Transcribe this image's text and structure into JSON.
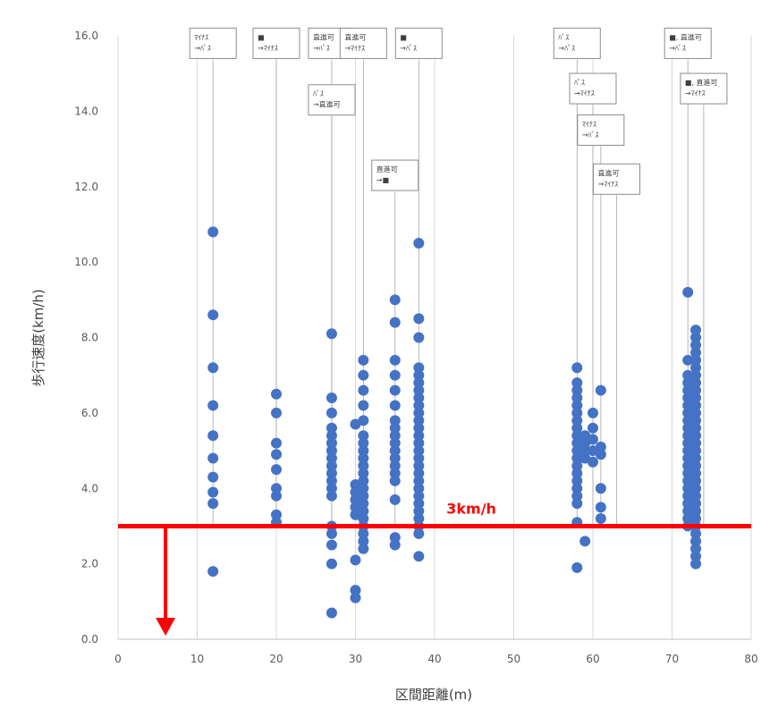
{
  "chart_data": {
    "type": "scatter",
    "title": "",
    "xlabel": "区間距離(m)",
    "ylabel": "歩行速度(km/h)",
    "xlim": [
      0,
      80
    ],
    "ylim": [
      0,
      16
    ],
    "x_ticks": [
      "0",
      "10",
      "20",
      "30",
      "40",
      "50",
      "60",
      "70",
      "80"
    ],
    "y_ticks": [
      "0.0",
      "2.0",
      "4.0",
      "6.0",
      "8.0",
      "10.0",
      "12.0",
      "14.0",
      "16.0"
    ],
    "grid": "vertical",
    "marker_color": "#4472c4",
    "threshold": {
      "value": 3,
      "label": "3km/h",
      "color": "#ff0000"
    },
    "series": [
      {
        "points": [
          [
            12,
            10.8
          ],
          [
            12,
            8.6
          ],
          [
            12,
            7.2
          ],
          [
            12,
            6.2
          ],
          [
            12,
            5.4
          ],
          [
            12,
            4.8
          ],
          [
            12,
            4.3
          ],
          [
            12,
            3.9
          ],
          [
            12,
            3.6
          ],
          [
            12,
            1.8
          ],
          [
            20,
            6.5
          ],
          [
            20,
            6.0
          ],
          [
            20,
            5.2
          ],
          [
            20,
            4.9
          ],
          [
            20,
            4.5
          ],
          [
            20,
            4.0
          ],
          [
            20,
            3.8
          ],
          [
            20,
            3.3
          ],
          [
            20,
            3.1
          ],
          [
            27,
            8.1
          ],
          [
            27,
            6.4
          ],
          [
            27,
            6.0
          ],
          [
            27,
            5.6
          ],
          [
            27,
            5.4
          ],
          [
            27,
            5.2
          ],
          [
            27,
            5.0
          ],
          [
            27,
            4.8
          ],
          [
            27,
            4.6
          ],
          [
            27,
            4.4
          ],
          [
            27,
            4.2
          ],
          [
            27,
            4.0
          ],
          [
            27,
            3.8
          ],
          [
            27,
            3.0
          ],
          [
            27,
            2.8
          ],
          [
            27,
            2.5
          ],
          [
            27,
            2.0
          ],
          [
            27,
            0.7
          ],
          [
            30,
            5.7
          ],
          [
            30,
            4.1
          ],
          [
            30,
            3.9
          ],
          [
            30,
            3.7
          ],
          [
            30,
            3.5
          ],
          [
            30,
            3.3
          ],
          [
            30,
            2.1
          ],
          [
            30,
            1.3
          ],
          [
            30,
            1.1
          ],
          [
            31,
            7.4
          ],
          [
            31,
            7.0
          ],
          [
            31,
            6.6
          ],
          [
            31,
            6.2
          ],
          [
            31,
            5.8
          ],
          [
            31,
            5.4
          ],
          [
            31,
            5.2
          ],
          [
            31,
            5.0
          ],
          [
            31,
            4.8
          ],
          [
            31,
            4.6
          ],
          [
            31,
            4.4
          ],
          [
            31,
            4.2
          ],
          [
            31,
            4.0
          ],
          [
            31,
            3.8
          ],
          [
            31,
            3.6
          ],
          [
            31,
            3.4
          ],
          [
            31,
            3.2
          ],
          [
            31,
            3.0
          ],
          [
            31,
            2.8
          ],
          [
            31,
            2.6
          ],
          [
            31,
            2.4
          ],
          [
            35,
            9.0
          ],
          [
            35,
            8.4
          ],
          [
            35,
            7.4
          ],
          [
            35,
            7.0
          ],
          [
            35,
            6.6
          ],
          [
            35,
            6.2
          ],
          [
            35,
            5.8
          ],
          [
            35,
            5.6
          ],
          [
            35,
            5.4
          ],
          [
            35,
            5.2
          ],
          [
            35,
            5.0
          ],
          [
            35,
            4.8
          ],
          [
            35,
            4.6
          ],
          [
            35,
            4.4
          ],
          [
            35,
            4.2
          ],
          [
            35,
            3.7
          ],
          [
            35,
            2.7
          ],
          [
            35,
            2.5
          ],
          [
            38,
            10.5
          ],
          [
            38,
            8.5
          ],
          [
            38,
            8.0
          ],
          [
            38,
            7.2
          ],
          [
            38,
            7.0
          ],
          [
            38,
            6.8
          ],
          [
            38,
            6.6
          ],
          [
            38,
            6.4
          ],
          [
            38,
            6.2
          ],
          [
            38,
            6.0
          ],
          [
            38,
            5.8
          ],
          [
            38,
            5.6
          ],
          [
            38,
            5.4
          ],
          [
            38,
            5.2
          ],
          [
            38,
            5.0
          ],
          [
            38,
            4.8
          ],
          [
            38,
            4.6
          ],
          [
            38,
            4.4
          ],
          [
            38,
            4.2
          ],
          [
            38,
            4.0
          ],
          [
            38,
            3.8
          ],
          [
            38,
            3.6
          ],
          [
            38,
            3.4
          ],
          [
            38,
            3.2
          ],
          [
            38,
            3.0
          ],
          [
            38,
            2.8
          ],
          [
            38,
            2.2
          ],
          [
            58,
            7.2
          ],
          [
            58,
            6.8
          ],
          [
            58,
            6.6
          ],
          [
            58,
            6.4
          ],
          [
            58,
            6.2
          ],
          [
            58,
            6.0
          ],
          [
            58,
            5.8
          ],
          [
            58,
            5.6
          ],
          [
            58,
            5.4
          ],
          [
            58,
            5.2
          ],
          [
            58,
            5.0
          ],
          [
            58,
            4.8
          ],
          [
            58,
            4.6
          ],
          [
            58,
            4.4
          ],
          [
            58,
            4.2
          ],
          [
            58,
            4.0
          ],
          [
            58,
            3.8
          ],
          [
            58,
            3.6
          ],
          [
            58,
            3.1
          ],
          [
            58,
            1.9
          ],
          [
            59,
            5.4
          ],
          [
            59,
            5.2
          ],
          [
            59,
            5.0
          ],
          [
            59,
            4.8
          ],
          [
            59,
            2.6
          ],
          [
            60,
            6.0
          ],
          [
            60,
            5.6
          ],
          [
            60,
            5.3
          ],
          [
            60,
            5.0
          ],
          [
            60,
            4.7
          ],
          [
            61,
            6.6
          ],
          [
            61,
            5.1
          ],
          [
            61,
            4.9
          ],
          [
            61,
            4.0
          ],
          [
            61,
            3.5
          ],
          [
            61,
            3.2
          ],
          [
            72,
            9.2
          ],
          [
            72,
            7.4
          ],
          [
            72,
            7.0
          ],
          [
            72,
            6.8
          ],
          [
            72,
            6.6
          ],
          [
            72,
            6.4
          ],
          [
            72,
            6.2
          ],
          [
            72,
            6.0
          ],
          [
            72,
            5.8
          ],
          [
            72,
            5.6
          ],
          [
            72,
            5.4
          ],
          [
            72,
            5.2
          ],
          [
            72,
            5.0
          ],
          [
            72,
            4.8
          ],
          [
            72,
            4.6
          ],
          [
            72,
            4.4
          ],
          [
            72,
            4.2
          ],
          [
            72,
            4.0
          ],
          [
            72,
            3.8
          ],
          [
            72,
            3.6
          ],
          [
            72,
            3.4
          ],
          [
            72,
            3.2
          ],
          [
            72,
            3.0
          ],
          [
            73,
            8.2
          ],
          [
            73,
            8.0
          ],
          [
            73,
            7.8
          ],
          [
            73,
            7.6
          ],
          [
            73,
            7.4
          ],
          [
            73,
            7.2
          ],
          [
            73,
            7.0
          ],
          [
            73,
            6.8
          ],
          [
            73,
            6.6
          ],
          [
            73,
            6.4
          ],
          [
            73,
            6.2
          ],
          [
            73,
            6.0
          ],
          [
            73,
            5.8
          ],
          [
            73,
            5.6
          ],
          [
            73,
            5.4
          ],
          [
            73,
            5.2
          ],
          [
            73,
            5.0
          ],
          [
            73,
            4.8
          ],
          [
            73,
            4.6
          ],
          [
            73,
            4.4
          ],
          [
            73,
            4.2
          ],
          [
            73,
            4.0
          ],
          [
            73,
            3.8
          ],
          [
            73,
            3.6
          ],
          [
            73,
            3.4
          ],
          [
            73,
            3.2
          ],
          [
            73,
            3.0
          ],
          [
            73,
            2.8
          ],
          [
            73,
            2.6
          ],
          [
            73,
            2.4
          ],
          [
            73,
            2.2
          ],
          [
            73,
            2.0
          ]
        ]
      }
    ],
    "callouts": [
      {
        "x": 12,
        "y": 15.8,
        "lines": [
          "ﾏｲﾅｽ",
          "→ﾊﾟｽ"
        ]
      },
      {
        "x": 20,
        "y": 15.8,
        "lines": [
          "■",
          "→ﾏｲﾅｽ"
        ]
      },
      {
        "x": 27,
        "y": 15.8,
        "lines": [
          "直進可",
          "→ﾊﾟｽ"
        ]
      },
      {
        "x": 31,
        "y": 15.8,
        "lines": [
          "直進可",
          "→ﾏｲﾅｽ"
        ]
      },
      {
        "x": 38,
        "y": 15.8,
        "lines": [
          "■",
          "→ﾊﾟｽ"
        ]
      },
      {
        "x": 58,
        "y": 15.8,
        "lines": [
          "ﾊﾟｽ",
          "→ﾊﾟｽ"
        ]
      },
      {
        "x": 72,
        "y": 15.8,
        "lines": [
          "■, 直進可",
          "→ﾊﾟｽ"
        ]
      },
      {
        "x": 27,
        "y": 14.3,
        "lines": [
          "ﾊﾟｽ",
          "→直進可"
        ]
      },
      {
        "x": 35,
        "y": 12.3,
        "lines": [
          "直進可",
          "→■"
        ]
      },
      {
        "x": 60,
        "y": 14.6,
        "lines": [
          "ﾊﾟｽ",
          "→ﾏｲﾅｽ"
        ]
      },
      {
        "x": 74,
        "y": 14.6,
        "lines": [
          "■, 直進可",
          "→ﾏｲﾅｽ"
        ]
      },
      {
        "x": 61,
        "y": 13.5,
        "lines": [
          "ﾏｲﾅｽ",
          "→ﾊﾟｽ"
        ]
      },
      {
        "x": 63,
        "y": 12.2,
        "lines": [
          "直進可",
          "→ﾏｲﾅｽ"
        ]
      }
    ]
  }
}
